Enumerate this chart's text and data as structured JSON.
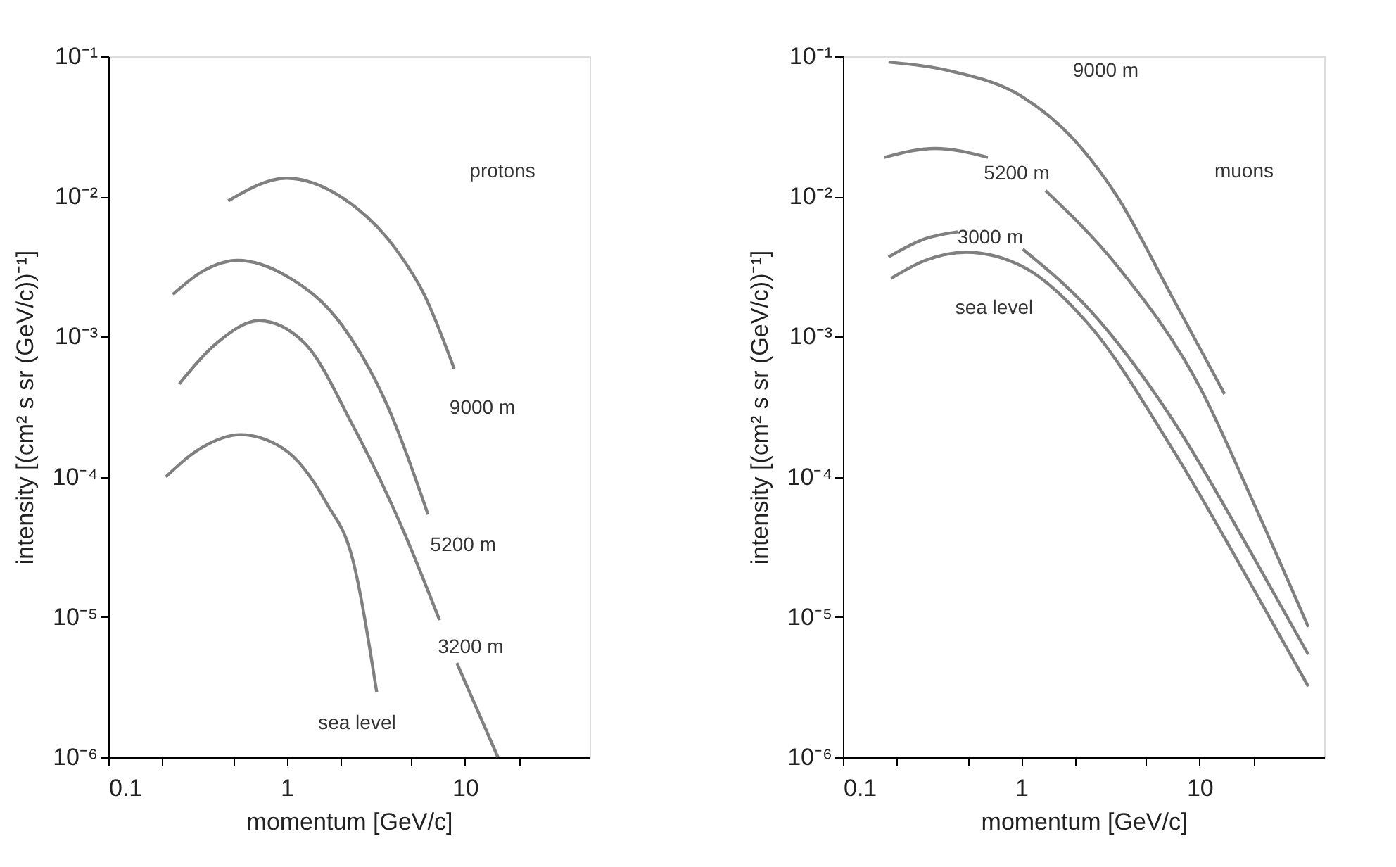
{
  "chart_data": [
    {
      "type": "line",
      "xlabel": "momentum [GeV/c]",
      "ylabel": "intensity [(cm² s sr (GeV/c))⁻¹]",
      "log": "xy",
      "grid": false,
      "marker": "none",
      "line_style": "solid",
      "xlim": [
        0.1,
        50
      ],
      "ylim": [
        1e-06,
        0.1
      ],
      "xticks": [
        0.1,
        {
          "value": 0.2,
          "label": null
        },
        {
          "value": 0.5,
          "label": null
        },
        1,
        {
          "value": 2,
          "label": null
        },
        {
          "value": 5,
          "label": null
        },
        10,
        {
          "value": 20,
          "label": null
        }
      ],
      "yticks": [
        {
          "value": 1e-06,
          "label": "10⁻⁶"
        },
        {
          "value": 1e-05,
          "label": "10⁻⁵"
        },
        {
          "value": 0.0001,
          "label": "10⁻⁴"
        },
        {
          "value": 0.001,
          "label": "10⁻³"
        },
        {
          "value": 0.01,
          "label": "10⁻²"
        },
        {
          "value": 0.1,
          "label": "10⁻¹"
        }
      ],
      "annotations": [
        "protons"
      ],
      "series": [
        {
          "name": "9000 m",
          "color": "#808080",
          "x": [
            0.47,
            1.0,
            2.05,
            4.1,
            5.9,
            8.7
          ],
          "values": [
            0.0093,
            0.0135,
            0.0098,
            0.0042,
            0.002,
            0.00059
          ]
        },
        {
          "name": "5200 m",
          "color": "#808080",
          "x": [
            0.23,
            0.35,
            0.53,
            1.0,
            2.05,
            3.6,
            6.2
          ],
          "values": [
            0.002,
            0.003,
            0.0035,
            0.0027,
            0.0012,
            0.00034,
            5.4e-05
          ]
        },
        {
          "name": "3200 m",
          "color": "#808080",
          "x": [
            0.25,
            0.41,
            0.7,
            1.25,
            2.36,
            4.45,
            7.2,
            8.0,
            9.0,
            15.3
          ],
          "values": [
            0.00046,
            0.00091,
            0.0013,
            0.00091,
            0.00023,
            4.3e-05,
            9.5e-06,
            null,
            4.7e-06,
            1e-06
          ]
        },
        {
          "name": "sea level",
          "color": "#808080",
          "x": [
            0.21,
            0.33,
            0.55,
            0.95,
            1.66,
            2.36,
            3.2
          ],
          "values": [
            0.0001,
            0.00016,
            0.0002,
            0.00016,
            6.6e-05,
            2.5e-05,
            2.9e-06
          ]
        }
      ]
    },
    {
      "type": "line",
      "xlabel": "momentum [GeV/c]",
      "ylabel": "intensity [(cm² s sr (GeV/c))⁻¹]",
      "log": "xy",
      "grid": false,
      "marker": "none",
      "line_style": "solid",
      "xlim": [
        0.1,
        50
      ],
      "ylim": [
        1e-06,
        0.1
      ],
      "xticks": [
        0.1,
        {
          "value": 0.2,
          "label": null
        },
        {
          "value": 0.5,
          "label": null
        },
        1,
        {
          "value": 2,
          "label": null
        },
        {
          "value": 5,
          "label": null
        },
        10,
        {
          "value": 20,
          "label": null
        }
      ],
      "yticks": [
        {
          "value": 1e-06,
          "label": "10⁻⁶"
        },
        {
          "value": 1e-05,
          "label": "10⁻⁵"
        },
        {
          "value": 0.0001,
          "label": "10⁻⁴"
        },
        {
          "value": 0.001,
          "label": "10⁻³"
        },
        {
          "value": 0.01,
          "label": "10⁻²"
        },
        {
          "value": 0.1,
          "label": "10⁻¹"
        }
      ],
      "annotations": [
        "muons"
      ],
      "series": [
        {
          "name": "9000 m",
          "color": "#808080",
          "x": [
            0.18,
            0.41,
            1.0,
            2.0,
            3.45,
            6.9,
            13.8
          ],
          "values": [
            0.091,
            0.078,
            0.052,
            0.025,
            0.01,
            0.002,
            0.00039
          ]
        },
        {
          "name": "5200 m",
          "color": "#808080",
          "x": [
            0.17,
            0.33,
            0.65,
            1.0,
            1.37,
            3.45,
            10,
            20,
            40.7
          ],
          "values": [
            0.019,
            0.022,
            0.019,
            null,
            0.011,
            0.0032,
            0.00044,
            6.6e-05,
            8.5e-06
          ]
        },
        {
          "name": "3000 m",
          "color": "#808080",
          "x": [
            0.18,
            0.29,
            0.44,
            0.7,
            1.02,
            2.42,
            7.0,
            20,
            40.7
          ],
          "values": [
            0.0037,
            0.005,
            0.0056,
            null,
            0.0042,
            0.00155,
            0.00026,
            2.7e-05,
            5.4e-06
          ]
        },
        {
          "name": "sea level",
          "color": "#808080",
          "x": [
            0.186,
            0.29,
            0.49,
            1.0,
            2.42,
            7.0,
            20,
            40.7
          ],
          "values": [
            0.0026,
            0.0035,
            0.004,
            0.0032,
            0.0012,
            0.00016,
            1.6e-05,
            3.2e-06
          ]
        }
      ]
    }
  ]
}
